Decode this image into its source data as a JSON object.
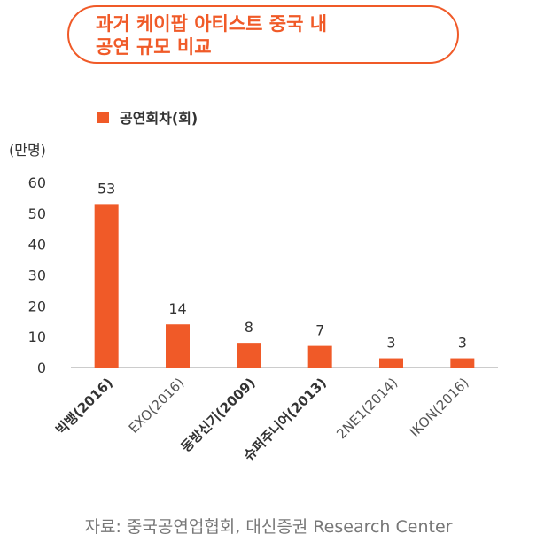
{
  "title_line1": "과거 케이팝 아티스트 중국 내",
  "title_line2": "공연 규모 비교",
  "unit_label": "(만명)",
  "source": "자료: 중국공연업협회, 대신증권 Research Center",
  "chart_data": {
    "type": "bar",
    "title": "과거 케이팝 아티스트 중국 내 공연 규모 비교",
    "ylabel": "(만명)",
    "xlabel": "",
    "ylim": [
      0,
      60
    ],
    "yticks": [
      "0",
      "10",
      "20",
      "30",
      "40",
      "50",
      "60"
    ],
    "categories": [
      "빅뱅(2016)",
      "EXO(2016)",
      "동방신기(2009)",
      "슈퍼주니어(2013)",
      "2NE1(2014)",
      "IKON(2016)"
    ],
    "bold_categories": [
      true,
      false,
      true,
      true,
      false,
      false
    ],
    "series": [
      {
        "name": "공연회차(회)",
        "values": [
          53,
          14,
          8,
          7,
          3,
          3
        ],
        "labels": [
          "53",
          "14",
          "8",
          "7",
          "3",
          "3"
        ],
        "color": "#f05a28"
      }
    ],
    "legend": "top-left",
    "grid": false
  }
}
